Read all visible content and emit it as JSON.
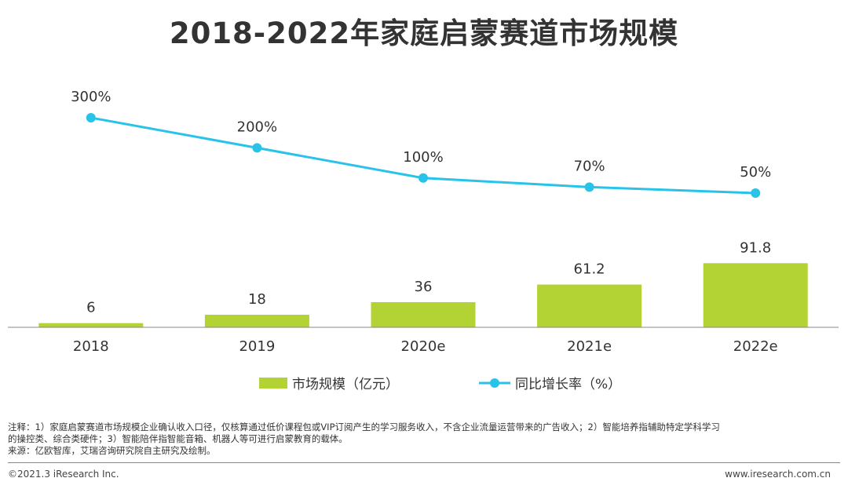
{
  "title": "2018-2022年家庭启蒙赛道市场规模",
  "chart_data": {
    "type": "bar",
    "categories": [
      "2018",
      "2019",
      "2020e",
      "2021e",
      "2022e"
    ],
    "series": [
      {
        "name": "市场规模（亿元）",
        "type": "bar",
        "values": [
          6,
          18,
          36,
          61.2,
          91.8
        ],
        "labels": [
          "6",
          "18",
          "36",
          "61.2",
          "91.8"
        ],
        "color": "#b3d334"
      },
      {
        "name": "同比增长率（%）",
        "type": "line",
        "values": [
          300,
          200,
          100,
          70,
          50
        ],
        "labels": [
          "300%",
          "200%",
          "100%",
          "70%",
          "50%"
        ],
        "color": "#29c3ea"
      }
    ],
    "legend": "bottom-center",
    "grid": false
  },
  "notes": {
    "line1": "注释：1）家庭启蒙赛道市场规模企业确认收入口径，仅核算通过低价课程包或VIP订阅产生的学习服务收入，不含企业流量运营带来的广告收入；2）智能培养指辅助特定学科学习",
    "line2": "的操控类、综合类硬件；3）智能陪伴指智能音箱、机器人等可进行启蒙教育的载体。",
    "source": "来源：亿欧智库，艾瑞咨询研究院自主研究及绘制。"
  },
  "footer": {
    "copyright": "©2021.3 iResearch Inc.",
    "site": "www.iresearch.com.cn"
  }
}
